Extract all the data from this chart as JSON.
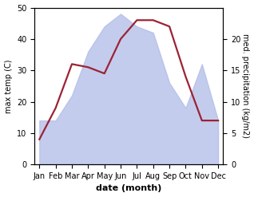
{
  "months": [
    "Jan",
    "Feb",
    "Mar",
    "Apr",
    "May",
    "Jun",
    "Jul",
    "Aug",
    "Sep",
    "Oct",
    "Nov",
    "Dec"
  ],
  "temp": [
    8,
    18,
    32,
    31,
    29,
    40,
    46,
    46,
    44,
    28,
    14,
    14
  ],
  "precip_kg": [
    7,
    7,
    11,
    18,
    22,
    24,
    22,
    21,
    13,
    9,
    16,
    7
  ],
  "temp_color": "#9b2335",
  "precip_color": "#b0bce8",
  "precip_alpha": 0.75,
  "ylabel_left": "max temp (C)",
  "ylabel_right": "med. precipitation (kg/m2)",
  "xlabel": "date (month)",
  "ylim_left": [
    0,
    50
  ],
  "ylim_right": [
    0,
    25
  ],
  "yticks_left": [
    0,
    10,
    20,
    30,
    40,
    50
  ],
  "yticks_right": [
    0,
    5,
    10,
    15,
    20
  ],
  "bg_color": "#ffffff",
  "line_width": 1.6,
  "precip_scale": 2.0
}
